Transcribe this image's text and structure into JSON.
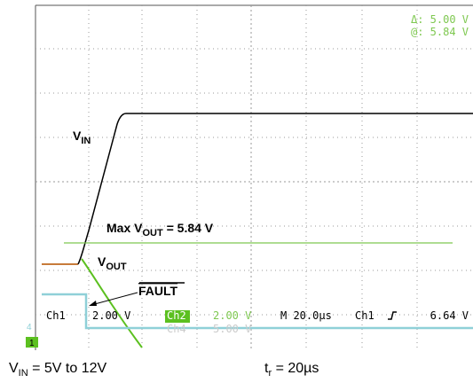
{
  "screen": {
    "cursor": {
      "delta": "Δ: 5.00 V",
      "at": "@: 5.84 V"
    },
    "labels": {
      "vin": {
        "main": "V",
        "sub": "IN"
      },
      "max": {
        "main": "Max V",
        "sub": "OUT",
        "rest": " = 5.84 V"
      },
      "vout": {
        "main": "V",
        "sub": "OUT"
      },
      "fault": "FAULT"
    },
    "status": {
      "ch1": "Ch1",
      "ch1_scale": "2.00 V",
      "ch2": "Ch2",
      "ch2_scale": "2.00 V",
      "timebase": "M 20.0µs",
      "trigger_src": "Ch1",
      "trigger_level": "6.64 V",
      "ch4": "Ch4",
      "ch4_scale": "5.00 V"
    },
    "markers": {
      "ch4": "4",
      "ch1": "1"
    }
  },
  "caption": {
    "vin": {
      "main": "V",
      "sub": "IN",
      "rest": " = 5V to 12V"
    },
    "tr": {
      "main": "t",
      "sub": "r",
      "rest": " = 20µs"
    }
  }
}
